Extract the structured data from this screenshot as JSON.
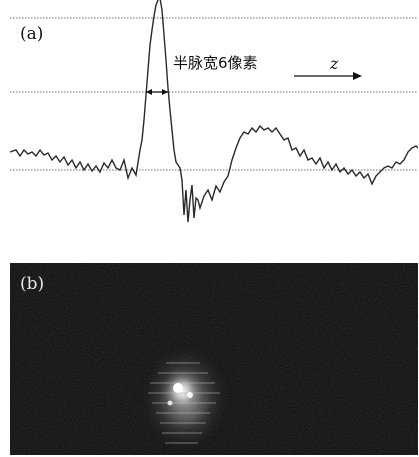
{
  "figure": {
    "panel_a": {
      "label": "(a)",
      "annotation": "半脉宽6像素",
      "axis_symbol": "z"
    },
    "panel_b": {
      "label": "(b)"
    }
  },
  "colors": {
    "trace": "#2a2a2a",
    "dotted_line": "#8a8a8a",
    "background_b": "#050505",
    "glow": "#ffffff"
  }
}
